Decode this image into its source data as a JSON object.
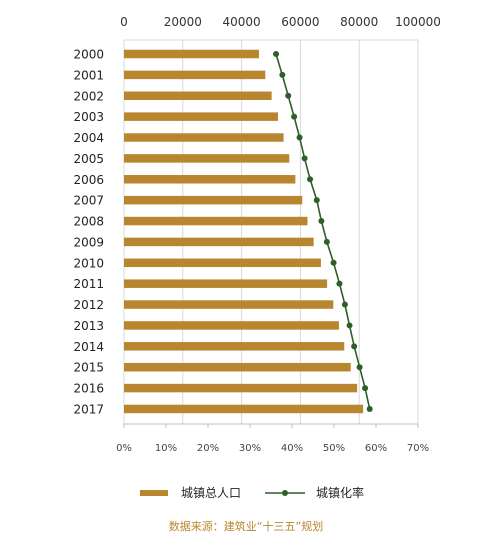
{
  "chart_data": {
    "type": "bar",
    "orientation": "horizontal",
    "categories": [
      "2000",
      "2001",
      "2002",
      "2003",
      "2004",
      "2005",
      "2006",
      "2007",
      "2008",
      "2009",
      "2010",
      "2011",
      "2012",
      "2013",
      "2014",
      "2015",
      "2016",
      "2017"
    ],
    "series": [
      {
        "name": "城镇总人口",
        "type": "bar",
        "axis": "top",
        "color": "#b8862f",
        "values": [
          45906,
          48064,
          50212,
          52376,
          54283,
          56212,
          58288,
          60633,
          62403,
          64512,
          66978,
          69079,
          71182,
          73111,
          74916,
          77116,
          79298,
          81347
        ]
      },
      {
        "name": "城镇化率",
        "type": "line",
        "axis": "bottom",
        "color": "#2e5e2a",
        "values": [
          36.2,
          37.7,
          39.1,
          40.5,
          41.8,
          43.0,
          44.3,
          45.9,
          47.0,
          48.3,
          49.9,
          51.3,
          52.6,
          53.7,
          54.8,
          56.1,
          57.4,
          58.5
        ]
      }
    ],
    "x_top": {
      "ticks": [
        "0",
        "20000",
        "40000",
        "60000",
        "80000",
        "100000"
      ],
      "range": [
        0,
        100000
      ]
    },
    "x_bottom": {
      "ticks": [
        "0%",
        "10%",
        "20%",
        "30%",
        "40%",
        "50%",
        "60%",
        "70%"
      ],
      "range": [
        0,
        70
      ]
    },
    "grid": true,
    "legend": {
      "position": "bottom",
      "items": [
        "城镇总人口",
        "城镇化率"
      ]
    },
    "source": "数据来源：建筑业“十三五”规划"
  }
}
